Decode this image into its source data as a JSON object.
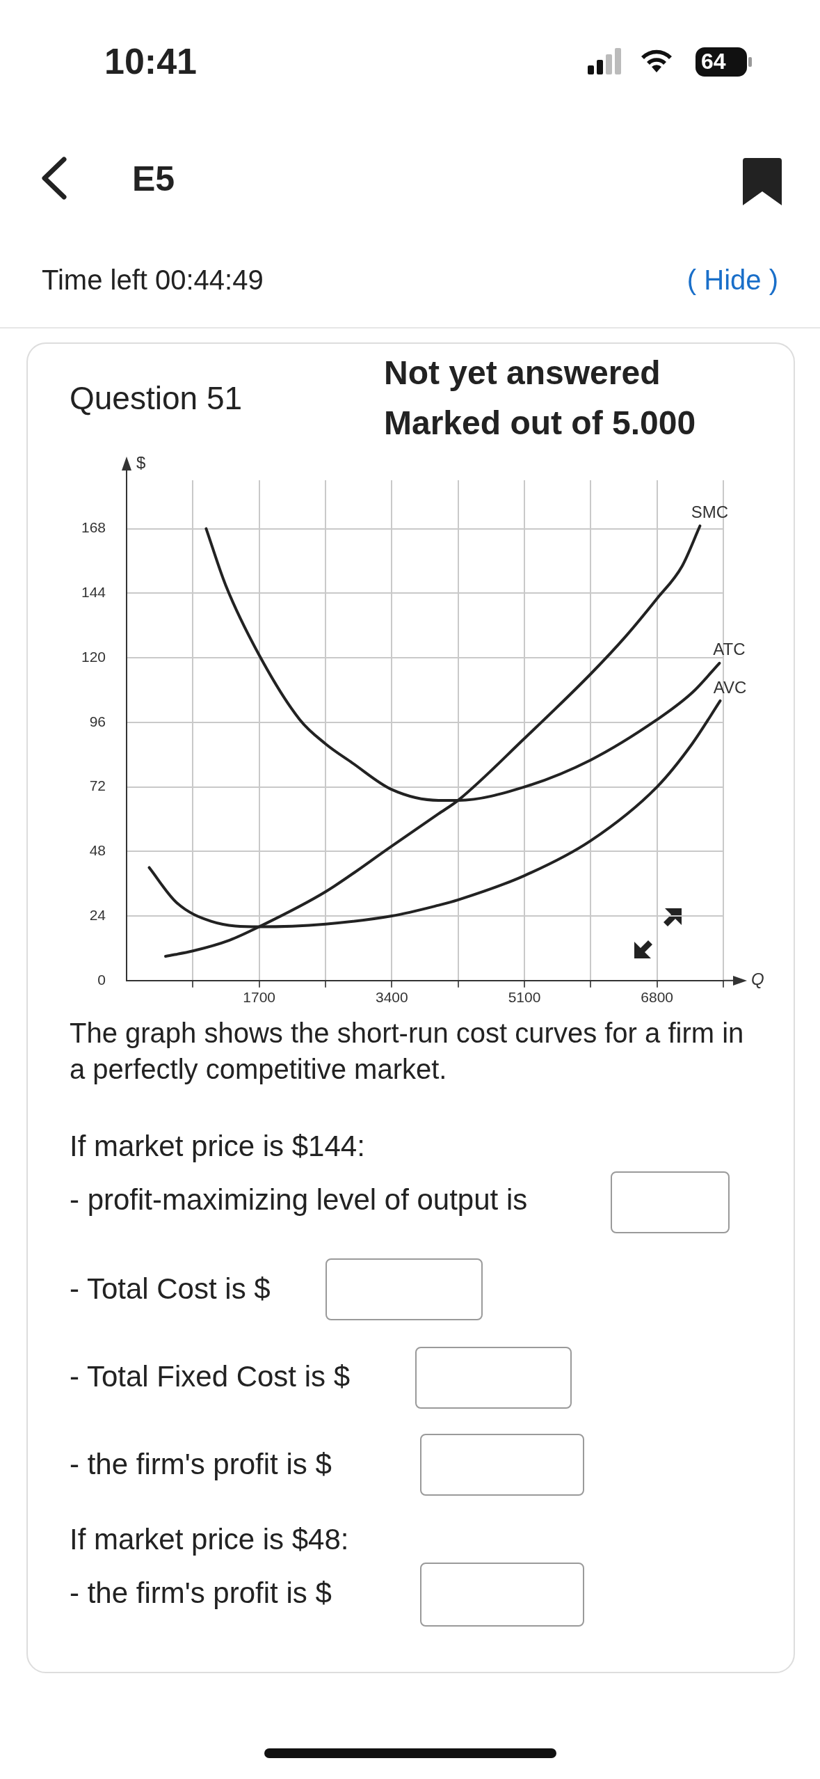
{
  "chart_data": {
    "type": "line",
    "xlabel": "Q",
    "ylabel": "$",
    "xlim": [
      0,
      7650
    ],
    "ylim": [
      0,
      186
    ],
    "xticks": [
      {
        "value": 850,
        "label": null
      },
      1700,
      {
        "value": 2550,
        "label": null
      },
      3400,
      {
        "value": 4250,
        "label": null
      },
      5100,
      {
        "value": 5950,
        "label": null
      },
      6800,
      {
        "value": 7650,
        "label": null
      }
    ],
    "yticks": [
      0,
      24,
      48,
      72,
      96,
      120,
      144,
      168
    ],
    "grid": true,
    "marker": "none",
    "line_style": "solid",
    "series": [
      {
        "name": "SMC",
        "color": "#222222",
        "x": [
          500,
          850,
          1320,
          1700,
          2550,
          3400,
          4000,
          4250,
          5100,
          5950,
          6400,
          6800,
          7120,
          7350
        ],
        "values": [
          9,
          11,
          15,
          20,
          33,
          50,
          62,
          67,
          90,
          114,
          128,
          142,
          154,
          169
        ]
      },
      {
        "name": "ATC",
        "color": "#222222",
        "x": [
          1020,
          1270,
          1700,
          2220,
          2550,
          2890,
          3400,
          4000,
          4250,
          5100,
          5950,
          6800,
          7250,
          7600
        ],
        "values": [
          168,
          147,
          121,
          97,
          88,
          81,
          71,
          67,
          67,
          72,
          82,
          97,
          107,
          118
        ]
      },
      {
        "name": "AVC",
        "color": "#222222",
        "x": [
          290,
          640,
          1090,
          1700,
          2550,
          3400,
          4000,
          4250,
          5100,
          5950,
          6800,
          7250,
          7610
        ],
        "values": [
          42,
          29,
          22,
          20,
          21,
          24,
          28,
          30,
          39,
          52,
          72,
          88,
          104
        ]
      }
    ],
    "annotations": [
      "10:41",
      "64",
      "E5",
      "Time left 00:44:49",
      "( Hide )",
      "Question 51",
      "Not yet answered",
      "Marked out of 5.000",
      "The graph shows the short-run cost curves for a firm in a perfectly competitive market.",
      "If market price is $144:",
      "- profit-maximizing level of output is",
      "- Total Cost is $",
      "- Total Fixed Cost is $",
      "- the firm's profit is $",
      "If market price is $48:",
      "- the firm's profit is $"
    ]
  }
}
